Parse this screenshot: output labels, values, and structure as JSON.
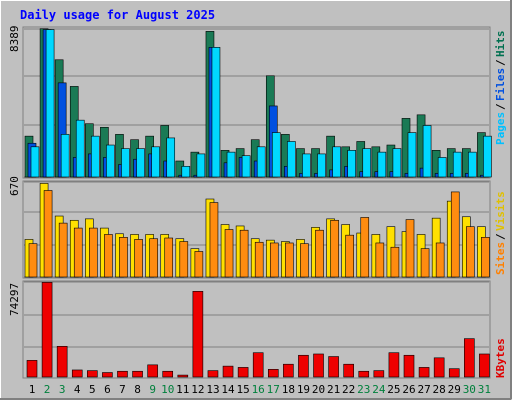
{
  "chart_data": [
    {
      "type": "bar",
      "title": "Daily usage for August 2025",
      "ylabel_max": "8389",
      "series": [
        {
          "name": "Hits",
          "values": [
            2300,
            8350,
            6600,
            5100,
            3000,
            2800,
            2400,
            2100,
            2300,
            2900,
            900,
            1400,
            8200,
            1500,
            1600,
            2100,
            5700,
            2400,
            1600,
            1600,
            2300,
            1700,
            2000,
            1700,
            1800,
            3300,
            3500,
            1500,
            1600,
            1600,
            2500
          ]
        },
        {
          "name": "Files",
          "values": [
            1900,
            8300,
            5300,
            1100,
            1300,
            1100,
            700,
            1000,
            1300,
            900,
            100,
            100,
            7300,
            800,
            1100,
            900,
            4000,
            600,
            200,
            200,
            400,
            600,
            300,
            300,
            300,
            200,
            500,
            200,
            200,
            200,
            100
          ]
        },
        {
          "name": "Pages",
          "values": [
            1700,
            8300,
            2400,
            3200,
            2300,
            1800,
            1600,
            1600,
            1700,
            2200,
            600,
            1300,
            7300,
            1400,
            1200,
            1700,
            2500,
            2000,
            1300,
            1300,
            1700,
            1500,
            1600,
            1400,
            1600,
            2500,
            2900,
            1100,
            1400,
            1400,
            2300
          ]
        }
      ],
      "axis_labels": [
        {
          "text": "Pages",
          "color": "#00c0ff"
        },
        {
          "text": "Files",
          "color": "#0050e0"
        },
        {
          "text": "Hits",
          "color": "#007050"
        }
      ]
    },
    {
      "type": "bar",
      "ylabel_max": "670",
      "series": [
        {
          "name": "Visits",
          "values": [
            265,
            660,
            430,
            400,
            410,
            345,
            305,
            300,
            300,
            300,
            270,
            200,
            550,
            370,
            360,
            270,
            260,
            250,
            265,
            350,
            410,
            370,
            310,
            300,
            355,
            320,
            300,
            415,
            535,
            425,
            355
          ]
        },
        {
          "name": "Sites",
          "values": [
            235,
            610,
            380,
            345,
            345,
            300,
            280,
            265,
            270,
            275,
            250,
            180,
            525,
            335,
            330,
            245,
            240,
            240,
            235,
            330,
            400,
            295,
            420,
            240,
            210,
            405,
            200,
            240,
            600,
            355,
            280
          ]
        }
      ],
      "axis_labels": [
        {
          "text": "Sites",
          "color": "#ff8000"
        },
        {
          "text": "Visits",
          "color": "#e0c000"
        }
      ]
    },
    {
      "type": "bar",
      "ylabel_max": "74297",
      "series": [
        {
          "name": "KBytes",
          "values": [
            13000,
            74000,
            24000,
            5500,
            5000,
            3500,
            4500,
            4500,
            9500,
            4500,
            1500,
            67000,
            5000,
            8500,
            7500,
            19000,
            6000,
            10000,
            17000,
            18000,
            16000,
            10000,
            4500,
            5000,
            19000,
            17000,
            7500,
            15000,
            6500,
            30000,
            18000
          ]
        }
      ],
      "axis_labels": [
        {
          "text": "KBytes",
          "color": "#e00000"
        }
      ]
    }
  ],
  "x_labels": [
    "1",
    "2",
    "3",
    "4",
    "5",
    "6",
    "7",
    "8",
    "9",
    "10",
    "11",
    "12",
    "13",
    "14",
    "15",
    "16",
    "17",
    "18",
    "19",
    "20",
    "21",
    "22",
    "23",
    "24",
    "25",
    "26",
    "27",
    "28",
    "29",
    "30",
    "31"
  ],
  "weekend_days": [
    2,
    3,
    9,
    10,
    16,
    17,
    23,
    24,
    30,
    31
  ],
  "colors": {
    "hits": "#1a7a55",
    "files": "#0050e0",
    "pages": "#00d8ff",
    "visits": "#ffe000",
    "sites": "#ff8c10",
    "kbytes": "#ee0000",
    "plot_bg": "#c0c0c0",
    "frame_bg": "#c0c0c0",
    "title": "#0000ff",
    "weekend_label": "#00803c",
    "weekday_label": "#000000"
  }
}
